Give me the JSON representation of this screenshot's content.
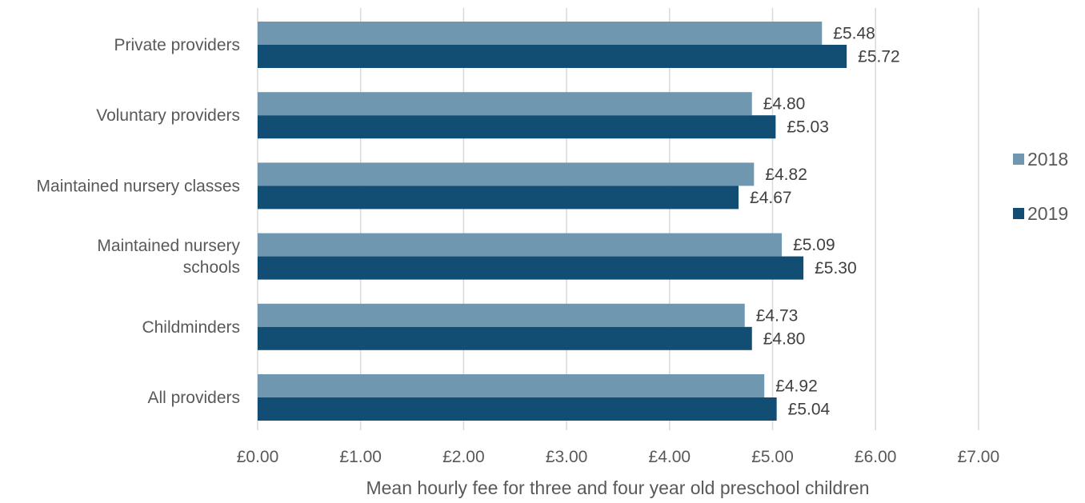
{
  "chart_data": {
    "type": "bar",
    "orientation": "horizontal",
    "categories": [
      "Private providers",
      "Voluntary providers",
      "Maintained nursery classes",
      "Maintained nursery schools",
      "Childminders",
      "All providers"
    ],
    "series": [
      {
        "name": "2018",
        "color": "#7097B0",
        "values": [
          5.48,
          4.8,
          4.82,
          5.09,
          4.73,
          4.92
        ],
        "labels": [
          "£5.48",
          "£4.80",
          "£4.82",
          "£5.09",
          "£4.73",
          "£4.92"
        ]
      },
      {
        "name": "2019",
        "color": "#124E74",
        "values": [
          5.72,
          5.03,
          4.67,
          5.3,
          4.8,
          5.04
        ],
        "labels": [
          "£5.72",
          "£5.03",
          "£4.67",
          "£5.30",
          "£4.80",
          "£5.04"
        ]
      }
    ],
    "xlabel": "Mean hourly fee for three and four year old preschool children",
    "ylabel": "",
    "xlim": [
      0,
      7
    ],
    "x_ticks": [
      0,
      1,
      2,
      3,
      4,
      5,
      6,
      7
    ],
    "x_tick_labels": [
      "£0.00",
      "£1.00",
      "£2.00",
      "£3.00",
      "£4.00",
      "£5.00",
      "£6.00",
      "£7.00"
    ],
    "grid": "vertical",
    "grid_color": "#D9D9D9",
    "legend_position": "right"
  }
}
